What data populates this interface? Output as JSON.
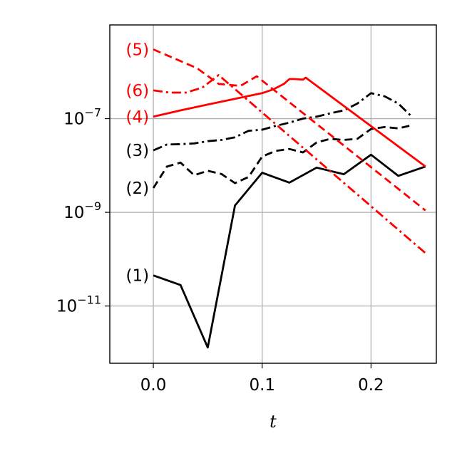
{
  "chart_data": {
    "type": "line",
    "title": "",
    "xlabel": "t",
    "ylabel": "",
    "yscale": "log",
    "xlim": [
      -0.04,
      0.26
    ],
    "ylim": [
      6e-13,
      1e-05
    ],
    "grid": true,
    "legend": "none",
    "xticks": [
      {
        "value": 0.0,
        "label": "0.0"
      },
      {
        "value": 0.1,
        "label": "0.1"
      },
      {
        "value": 0.2,
        "label": "0.2"
      }
    ],
    "yticks": [
      {
        "value": 1e-11,
        "base": "10",
        "exp": "−11"
      },
      {
        "value": 1e-09,
        "base": "10",
        "exp": "−9"
      },
      {
        "value": 1e-07,
        "base": "10",
        "exp": "−7"
      }
    ],
    "series": [
      {
        "label": "(1)",
        "color": "#000000",
        "dash": "solid",
        "x": [
          0,
          0.025,
          0.05,
          0.075,
          0.1,
          0.125,
          0.15,
          0.175,
          0.2,
          0.225,
          0.25
        ],
        "y": [
          4.5e-11,
          2.8e-11,
          1.3e-12,
          1.4e-09,
          7e-09,
          4.3e-09,
          9e-09,
          6.5e-09,
          1.7e-08,
          6e-09,
          9.5e-09
        ]
      },
      {
        "label": "(2)",
        "color": "#000000",
        "dash": "dashed",
        "x": [
          0,
          0.0125,
          0.025,
          0.0375,
          0.05,
          0.0625,
          0.075,
          0.0875,
          0.1,
          0.1125,
          0.125,
          0.1375,
          0.15,
          0.1625,
          0.175,
          0.1875,
          0.2,
          0.2125,
          0.225,
          0.2375
        ],
        "y": [
          3.3e-09,
          9.5e-09,
          1.15e-08,
          6.2e-09,
          7.7e-09,
          6.6e-09,
          4.2e-09,
          5.7e-09,
          1.55e-08,
          2.05e-08,
          2.25e-08,
          1.9e-08,
          3.1e-08,
          3.7e-08,
          3.5e-08,
          3.7e-08,
          6e-08,
          6.6e-08,
          6.2e-08,
          7.2e-08
        ]
      },
      {
        "label": "(3)",
        "color": "#000000",
        "dash": "dashdot",
        "x": [
          0,
          0.0125,
          0.025,
          0.0375,
          0.05,
          0.0625,
          0.075,
          0.0875,
          0.1,
          0.1125,
          0.125,
          0.1375,
          0.15,
          0.1625,
          0.175,
          0.1875,
          0.2,
          0.2125,
          0.225,
          0.2375
        ],
        "y": [
          2.1e-08,
          2.8e-08,
          2.85e-08,
          2.95e-08,
          3.3e-08,
          3.5e-08,
          4e-08,
          5.5e-08,
          5.8e-08,
          7e-08,
          8.2e-08,
          1e-07,
          1.1e-07,
          1.3e-07,
          1.5e-07,
          2.1e-07,
          3.5e-07,
          3e-07,
          2.1e-07,
          1.1e-07
        ]
      },
      {
        "label": "(4)",
        "color": "#ff0000",
        "dash": "solid",
        "x": [
          0,
          0.025,
          0.05,
          0.075,
          0.1,
          0.11,
          0.12,
          0.125,
          0.13,
          0.1375,
          0.14,
          0.25
        ],
        "y": [
          1.1e-07,
          1.5e-07,
          2e-07,
          2.65e-07,
          3.5e-07,
          4.2e-07,
          5.5e-07,
          7e-07,
          7e-07,
          6.8e-07,
          7.5e-07,
          9.5e-09
        ]
      },
      {
        "label": "(5)",
        "color": "#ff0000",
        "dash": "dashed",
        "x": [
          0,
          0.04,
          0.06,
          0.08,
          0.095,
          0.25
        ],
        "y": [
          3e-06,
          1.2e-06,
          5.5e-07,
          5e-07,
          8e-07,
          1.1e-09
        ]
      },
      {
        "label": "(6)",
        "color": "#ff0000",
        "dash": "dashdot",
        "x": [
          0,
          0.015,
          0.03,
          0.045,
          0.06,
          0.25
        ],
        "y": [
          4e-07,
          3.6e-07,
          3.6e-07,
          4.6e-07,
          8.5e-07,
          1.35e-10
        ]
      }
    ]
  }
}
